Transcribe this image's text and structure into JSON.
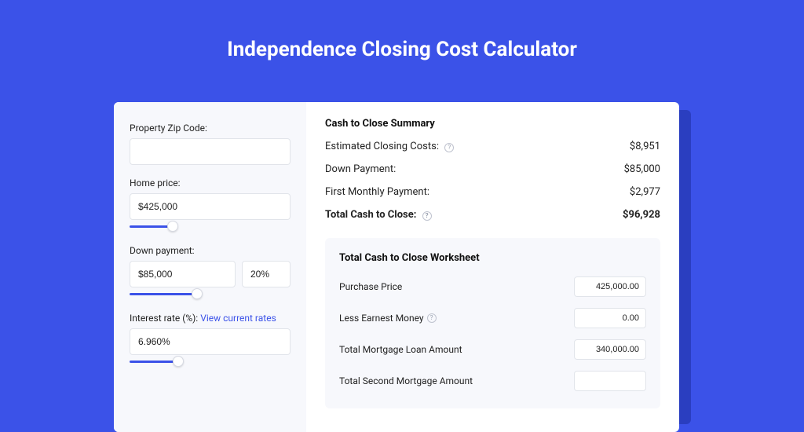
{
  "colors": {
    "page_bg": "#3b52e8",
    "card_bg": "#ffffff",
    "panel_bg": "#f7f8fc",
    "shadow_bg": "#2a3ec0",
    "border": "#e1e4ea",
    "text": "#1a1a1a",
    "link": "#3b52e8",
    "slider_track": "#3b52e8"
  },
  "typography": {
    "title_fontsize_pt": 20,
    "section_title_pt": 10,
    "body_pt": 9
  },
  "page": {
    "title": "Independence Closing Cost Calculator"
  },
  "inputs": {
    "zip": {
      "label": "Property Zip Code:",
      "value": ""
    },
    "home_price": {
      "label": "Home price:",
      "value": "$425,000",
      "slider_pct": 27
    },
    "down_payment": {
      "label": "Down payment:",
      "value": "$85,000",
      "pct": "20%",
      "slider_pct": 42
    },
    "interest_rate": {
      "label_prefix": "Interest rate (%): ",
      "link_text": "View current rates",
      "value": "6.960%",
      "slider_pct": 30
    }
  },
  "summary": {
    "title": "Cash to Close Summary",
    "rows": [
      {
        "label": "Estimated Closing Costs:",
        "help": true,
        "value": "$8,951"
      },
      {
        "label": "Down Payment:",
        "help": false,
        "value": "$85,000"
      },
      {
        "label": "First Monthly Payment:",
        "help": false,
        "value": "$2,977"
      }
    ],
    "total": {
      "label": "Total Cash to Close:",
      "help": true,
      "value": "$96,928"
    }
  },
  "worksheet": {
    "title": "Total Cash to Close Worksheet",
    "rows": [
      {
        "label": "Purchase Price",
        "help": false,
        "value": "425,000.00"
      },
      {
        "label": "Less Earnest Money",
        "help": true,
        "value": "0.00"
      },
      {
        "label": "Total Mortgage Loan Amount",
        "help": false,
        "value": "340,000.00"
      },
      {
        "label": "Total Second Mortgage Amount",
        "help": false,
        "value": ""
      }
    ]
  }
}
